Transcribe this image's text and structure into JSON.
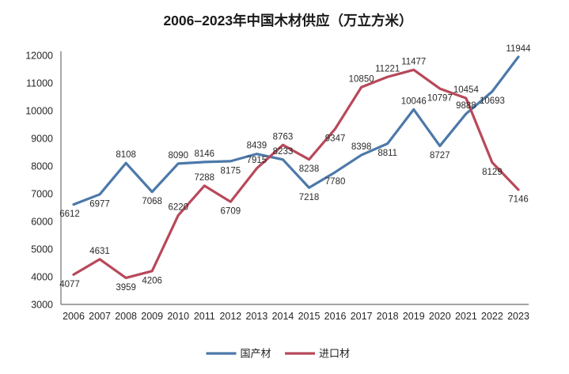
{
  "title": "2006–2023年中国木材供应（万立方米）",
  "colors": {
    "domestic_line": "#4C79A9",
    "imported_line": "#B8495A",
    "axis_line": "#6e6e6e",
    "text": "#262626",
    "background": "#ffffff"
  },
  "legend": {
    "position": "bottom",
    "items": [
      {
        "label": "国产材",
        "color": "#4C79A9"
      },
      {
        "label": "进口材",
        "color": "#B8495A"
      }
    ]
  },
  "chart_data": {
    "type": "line",
    "title": "2006–2023年中国木材供应（万立方米）",
    "xlabel": "",
    "ylabel": "",
    "x": [
      "2006",
      "2007",
      "2008",
      "2009",
      "2010",
      "2011",
      "2012",
      "2013",
      "2014",
      "2015",
      "2016",
      "2017",
      "2018",
      "2019",
      "2020",
      "2021",
      "2022",
      "2023"
    ],
    "series": [
      {
        "name": "国产材",
        "color": "#4C79A9",
        "values": [
          6612,
          6977,
          8108,
          7068,
          8090,
          8146,
          8175,
          8439,
          8233,
          7218,
          7780,
          8398,
          8811,
          10046,
          8727,
          9888,
          10693,
          11944
        ]
      },
      {
        "name": "进口材",
        "color": "#B8495A",
        "values": [
          4077,
          4631,
          3959,
          4206,
          6220,
          7288,
          6709,
          7915,
          8763,
          8238,
          9347,
          10850,
          11221,
          11477,
          10797,
          10454,
          8129,
          7146
        ]
      }
    ],
    "ylim": [
      3000,
      12000
    ],
    "ytick_step": 1000,
    "grid": false,
    "data_labels": true,
    "legend_position": "bottom"
  }
}
